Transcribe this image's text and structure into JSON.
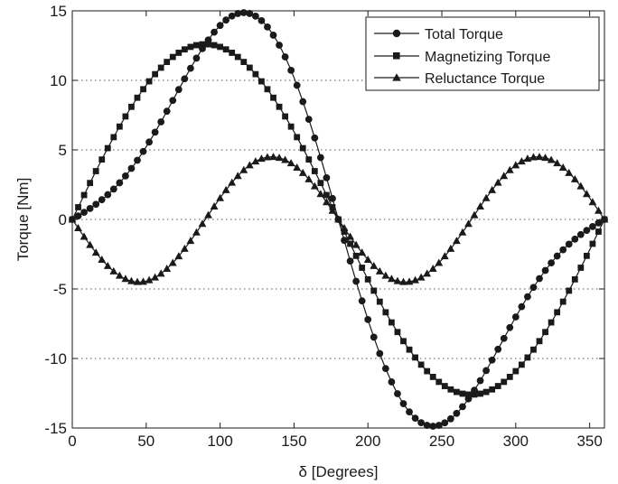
{
  "chart_data": {
    "type": "line",
    "title": "",
    "xlabel": "δ [Degrees]",
    "ylabel": "Torque [Nm]",
    "xlim": [
      0,
      360
    ],
    "ylim": [
      -15,
      15
    ],
    "xticks": [
      0,
      50,
      100,
      150,
      200,
      250,
      300,
      350
    ],
    "yticks": [
      -15,
      -10,
      -5,
      0,
      5,
      10,
      15
    ],
    "grid": "horizontal-dotted",
    "legend_position": "top-right",
    "marker_step_deg": 4,
    "series": [
      {
        "name": "Total Torque",
        "marker": "circle",
        "magnetizing_amplitude": 12.6,
        "reluctance_amplitude": 4.5
      },
      {
        "name": "Magnetizing Torque",
        "marker": "square",
        "amplitude": 12.6,
        "function": "amplitude * sin(δ)"
      },
      {
        "name": "Reluctance Torque",
        "marker": "triangle",
        "amplitude": 4.5,
        "function": "-amplitude * sin(2δ)"
      }
    ],
    "series_colors": [
      "#1a1a1a",
      "#1a1a1a",
      "#1a1a1a"
    ]
  }
}
